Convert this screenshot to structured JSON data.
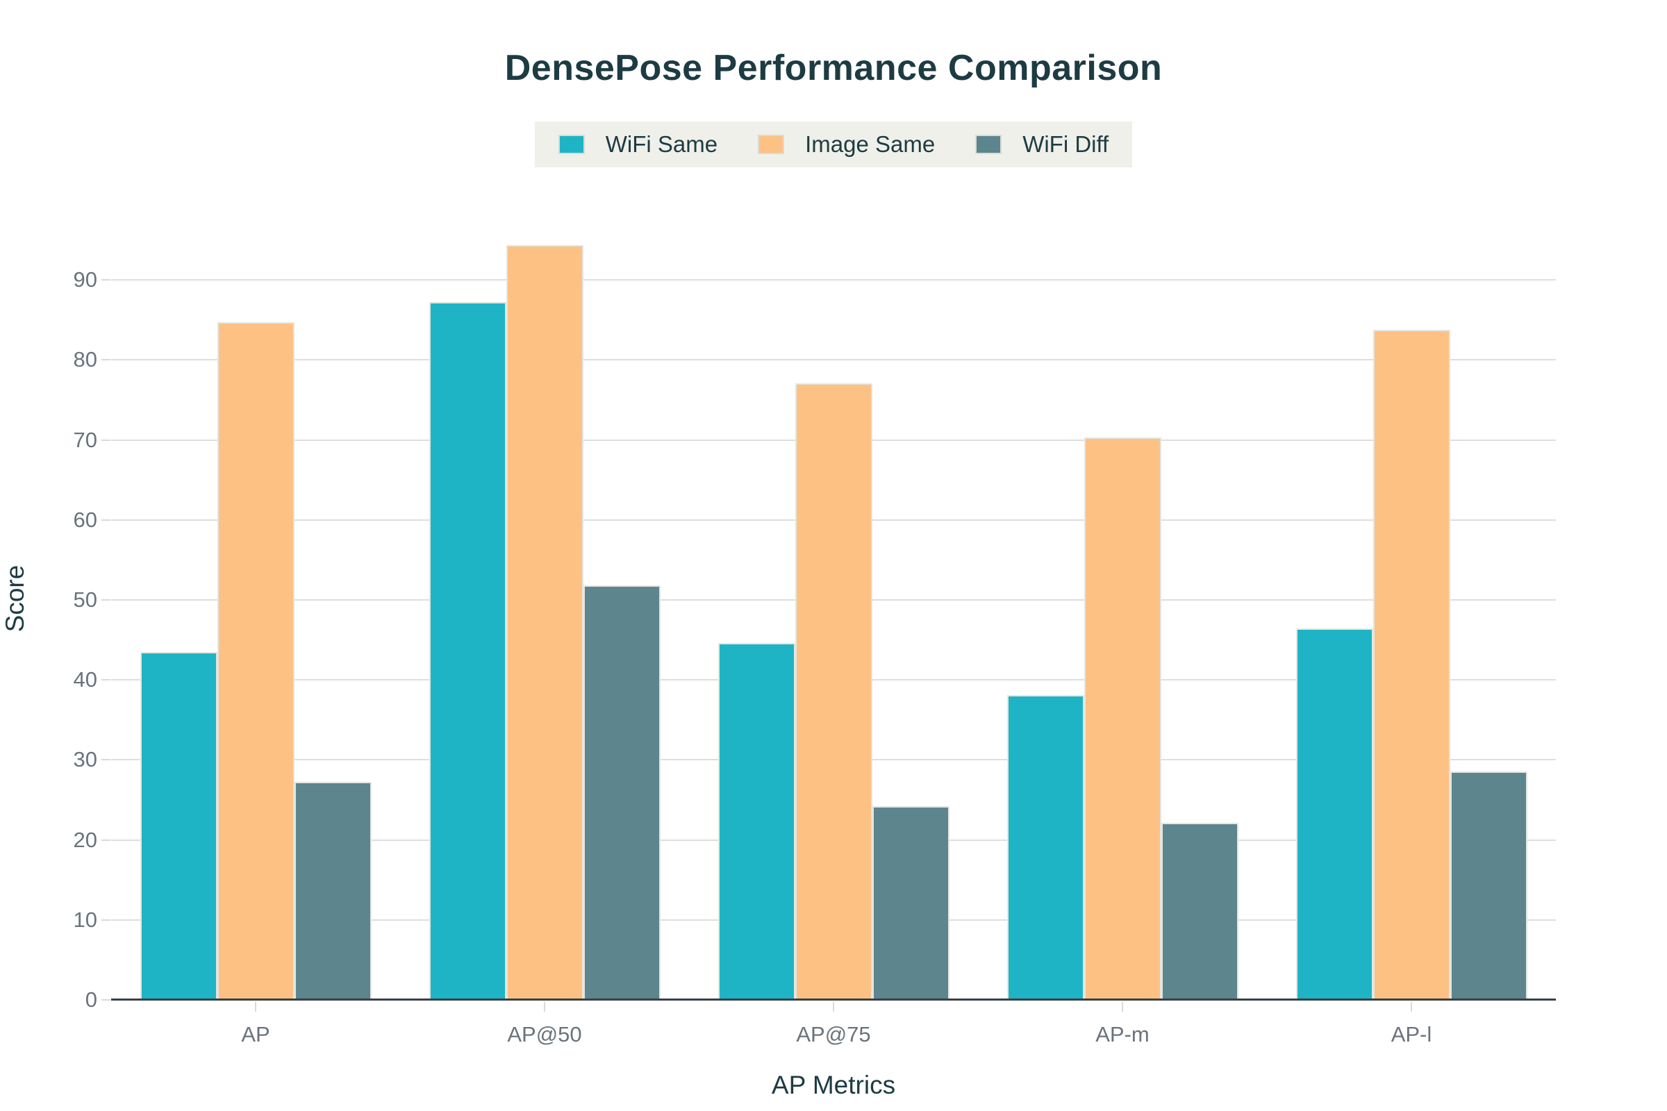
{
  "title": "DensePose Performance Comparison",
  "axis_titles": {
    "x": "AP Metrics",
    "y": "Score"
  },
  "colors": {
    "teal": "#1fb4c5",
    "orange": "#fec184",
    "slate": "#5d858e",
    "text_dark": "#1d3b42",
    "text_muted": "#6a737c",
    "gridline": "#dedede",
    "axis_line": "#3a4046",
    "legend_background": "#eff0e9",
    "background": "#ffffff"
  },
  "chart_data": {
    "type": "bar",
    "title": "DensePose Performance Comparison",
    "xlabel": "AP Metrics",
    "ylabel": "Score",
    "categories": [
      "AP",
      "AP@50",
      "AP@75",
      "AP-m",
      "AP-l"
    ],
    "series": [
      {
        "name": "WiFi Same",
        "color": "#1fb4c5",
        "values": [
          43.5,
          87.2,
          44.6,
          38.1,
          46.4
        ]
      },
      {
        "name": "Image Same",
        "color": "#fec184",
        "values": [
          84.7,
          94.4,
          77.1,
          70.3,
          83.8
        ]
      },
      {
        "name": "WiFi Diff",
        "color": "#5d858e",
        "values": [
          27.3,
          51.8,
          24.2,
          22.1,
          28.6
        ]
      }
    ],
    "ylim": [
      0,
      100
    ],
    "yticks": [
      0,
      10,
      20,
      30,
      40,
      50,
      60,
      70,
      80,
      90
    ],
    "grid": true,
    "legend_position": "top-center"
  }
}
